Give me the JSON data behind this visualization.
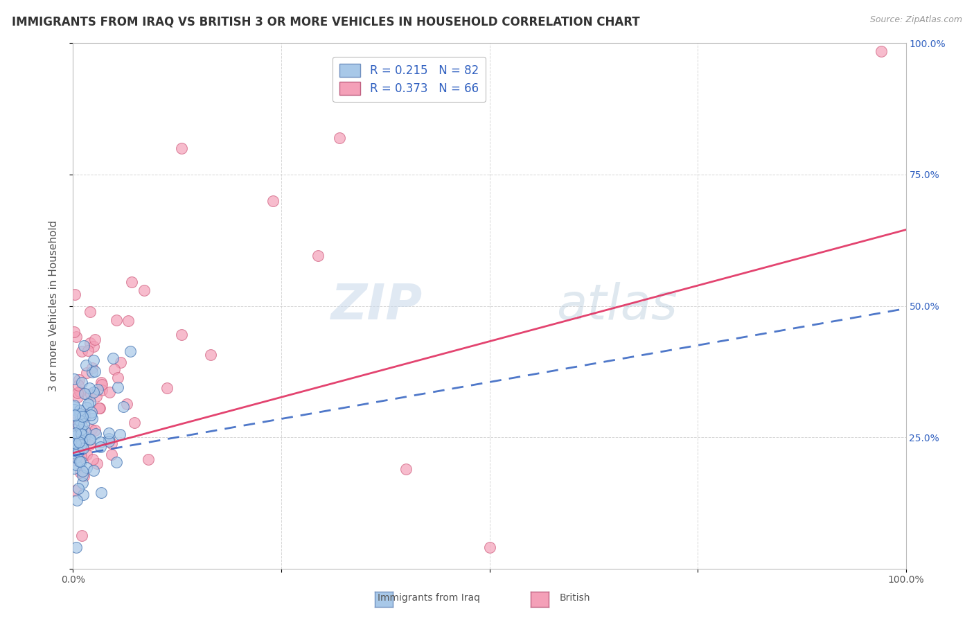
{
  "title": "IMMIGRANTS FROM IRAQ VS BRITISH 3 OR MORE VEHICLES IN HOUSEHOLD CORRELATION CHART",
  "source": "Source: ZipAtlas.com",
  "xlabel": "Immigrants from Iraq",
  "ylabel": "3 or more Vehicles in Household",
  "legend_label1": "Immigrants from Iraq",
  "legend_label2": "British",
  "R1": 0.215,
  "N1": 82,
  "R2": 0.373,
  "N2": 66,
  "color1": "#a8c8e8",
  "color2": "#f4a0b8",
  "trendline1_color": "#3060c0",
  "trendline2_color": "#e03060",
  "watermark_color": "#c8d8ea",
  "xlim": [
    0,
    1
  ],
  "ylim": [
    0,
    1
  ],
  "background_color": "#ffffff",
  "grid_color": "#cccccc",
  "title_fontsize": 12,
  "axis_label_fontsize": 11,
  "tick_fontsize": 10,
  "legend_fontsize": 12,
  "iraq_trendline_start_y": 0.215,
  "iraq_trendline_end_y": 0.495,
  "brit_trendline_start_y": 0.22,
  "brit_trendline_end_y": 0.645
}
